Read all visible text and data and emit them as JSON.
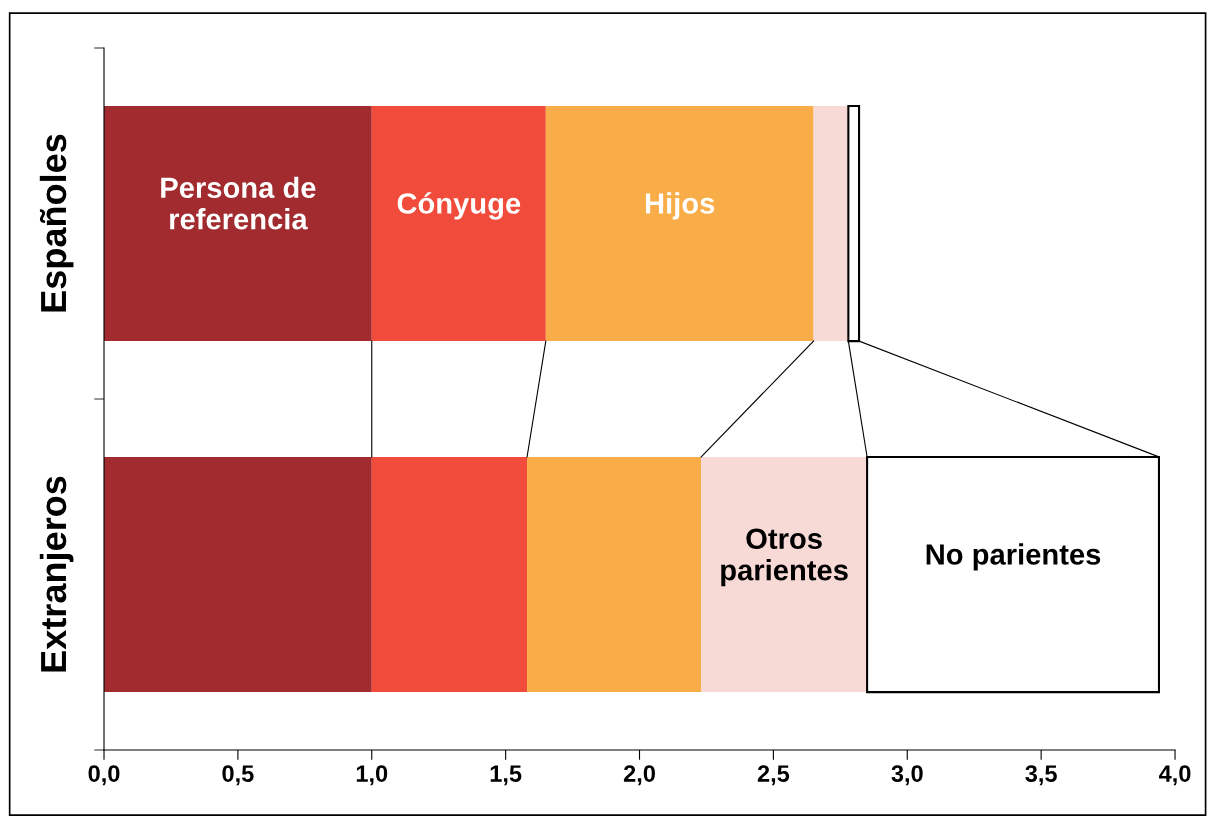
{
  "chart_data": {
    "type": "bar",
    "orientation": "horizontal",
    "stacked": true,
    "categories": [
      "Españoles",
      "Extranjeros"
    ],
    "series": [
      {
        "name": "Persona de referencia",
        "color": "#a12b2e",
        "values": [
          1.0,
          1.0
        ]
      },
      {
        "name": "Cónyuge",
        "color": "#f14b3b",
        "values": [
          0.65,
          0.58
        ]
      },
      {
        "name": "Hijos",
        "color": "#f9ad48",
        "values": [
          1.0,
          0.65
        ]
      },
      {
        "name": "Otros parientes",
        "color": "#f7d9d6",
        "values": [
          0.13,
          0.62
        ]
      },
      {
        "name": "No parientes",
        "color": "#ffffff",
        "values": [
          0.04,
          1.09
        ]
      }
    ],
    "xlim": [
      0,
      4
    ],
    "xticks": [
      {
        "value": 0,
        "label": "0,0"
      },
      {
        "value": 0.5,
        "label": "0,5"
      },
      {
        "value": 1,
        "label": "1,0"
      },
      {
        "value": 1.5,
        "label": "1,5"
      },
      {
        "value": 2,
        "label": "2,0"
      },
      {
        "value": 2.5,
        "label": "2,5"
      },
      {
        "value": 3,
        "label": "3,0"
      },
      {
        "value": 3.5,
        "label": "3,5"
      },
      {
        "value": 4,
        "label": "4,0"
      }
    ],
    "grid": false,
    "legend": false
  }
}
